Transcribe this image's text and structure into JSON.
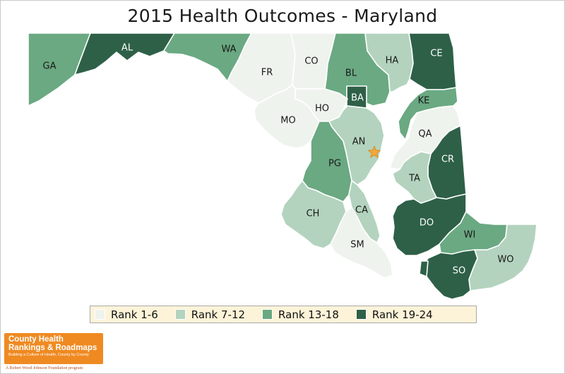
{
  "title": "2015 Health Outcomes - Maryland",
  "rank_colors": {
    "rank_1_6": "#eff3ee",
    "rank_7_12": "#b3d3be",
    "rank_13_18": "#6aa982",
    "rank_19_24": "#2e6048"
  },
  "counties": [
    {
      "code": "GA",
      "rank_group": "rank_13_18"
    },
    {
      "code": "AL",
      "rank_group": "rank_19_24"
    },
    {
      "code": "WA",
      "rank_group": "rank_13_18"
    },
    {
      "code": "FR",
      "rank_group": "rank_1_6"
    },
    {
      "code": "CO",
      "rank_group": "rank_1_6"
    },
    {
      "code": "BL",
      "rank_group": "rank_13_18"
    },
    {
      "code": "BA",
      "rank_group": "rank_19_24"
    },
    {
      "code": "HA",
      "rank_group": "rank_7_12"
    },
    {
      "code": "CE",
      "rank_group": "rank_19_24"
    },
    {
      "code": "HO",
      "rank_group": "rank_1_6"
    },
    {
      "code": "MO",
      "rank_group": "rank_1_6"
    },
    {
      "code": "KE",
      "rank_group": "rank_13_18"
    },
    {
      "code": "QA",
      "rank_group": "rank_1_6"
    },
    {
      "code": "AN",
      "rank_group": "rank_7_12"
    },
    {
      "code": "PG",
      "rank_group": "rank_13_18"
    },
    {
      "code": "CR",
      "rank_group": "rank_19_24"
    },
    {
      "code": "TA",
      "rank_group": "rank_7_12"
    },
    {
      "code": "CH",
      "rank_group": "rank_7_12"
    },
    {
      "code": "CA",
      "rank_group": "rank_7_12"
    },
    {
      "code": "DO",
      "rank_group": "rank_19_24"
    },
    {
      "code": "WI",
      "rank_group": "rank_13_18"
    },
    {
      "code": "SM",
      "rank_group": "rank_1_6"
    },
    {
      "code": "WO",
      "rank_group": "rank_7_12"
    },
    {
      "code": "SO",
      "rank_group": "rank_19_24"
    }
  ],
  "capital_marker_color": "#f3a73a",
  "legend": [
    {
      "label": "Rank 1-6",
      "color": "#eff3ee"
    },
    {
      "label": "Rank 7-12",
      "color": "#b3d3be"
    },
    {
      "label": "Rank 13-18",
      "color": "#6aa982"
    },
    {
      "label": "Rank 19-24",
      "color": "#2e6048"
    }
  ],
  "logo": {
    "line1": "County Health",
    "line2": "Rankings & Roadmaps",
    "tagline": "Building a Culture of Health, County by County",
    "footer": "A Robert Wood Johnson Foundation program"
  }
}
